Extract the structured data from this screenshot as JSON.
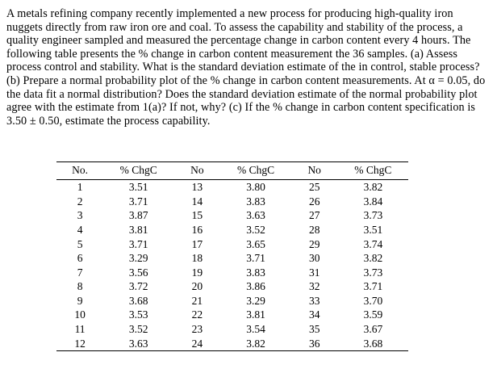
{
  "problem": {
    "text": "A metals refining company recently implemented a new process for producing high-quality iron nuggets directly from raw iron ore and coal.  To assess the capability and stability of the process, a quality engineer sampled and measured the percentage change in carbon content every 4 hours.  The following table presents the % change in carbon content measurement the 36 samples.  (a) Assess process control and stability.  What is the standard deviation estimate of the in control, stable process?  (b) Prepare a normal probability plot of the % change in carbon content measurements.  At α = 0.05, do the data fit a normal distribution?  Does the standard deviation estimate of the normal probability plot agree with the estimate from 1(a)?  If not, why?  (c) If the % change in carbon content specification is 3.50 ± 0.50, estimate the process capability."
  },
  "table": {
    "headers": [
      "No.",
      "% ChgC",
      "No",
      "% ChgC",
      "No",
      "% ChgC"
    ],
    "rows": [
      [
        "1",
        "3.51",
        "13",
        "3.80",
        "25",
        "3.82"
      ],
      [
        "2",
        "3.71",
        "14",
        "3.83",
        "26",
        "3.84"
      ],
      [
        "3",
        "3.87",
        "15",
        "3.63",
        "27",
        "3.73"
      ],
      [
        "4",
        "3.81",
        "16",
        "3.52",
        "28",
        "3.51"
      ],
      [
        "5",
        "3.71",
        "17",
        "3.65",
        "29",
        "3.74"
      ],
      [
        "6",
        "3.29",
        "18",
        "3.71",
        "30",
        "3.82"
      ],
      [
        "7",
        "3.56",
        "19",
        "3.83",
        "31",
        "3.73"
      ],
      [
        "8",
        "3.72",
        "20",
        "3.86",
        "32",
        "3.71"
      ],
      [
        "9",
        "3.68",
        "21",
        "3.29",
        "33",
        "3.70"
      ],
      [
        "10",
        "3.53",
        "22",
        "3.81",
        "34",
        "3.59"
      ],
      [
        "11",
        "3.52",
        "23",
        "3.54",
        "35",
        "3.67"
      ],
      [
        "12",
        "3.63",
        "24",
        "3.82",
        "36",
        "3.68"
      ]
    ]
  }
}
